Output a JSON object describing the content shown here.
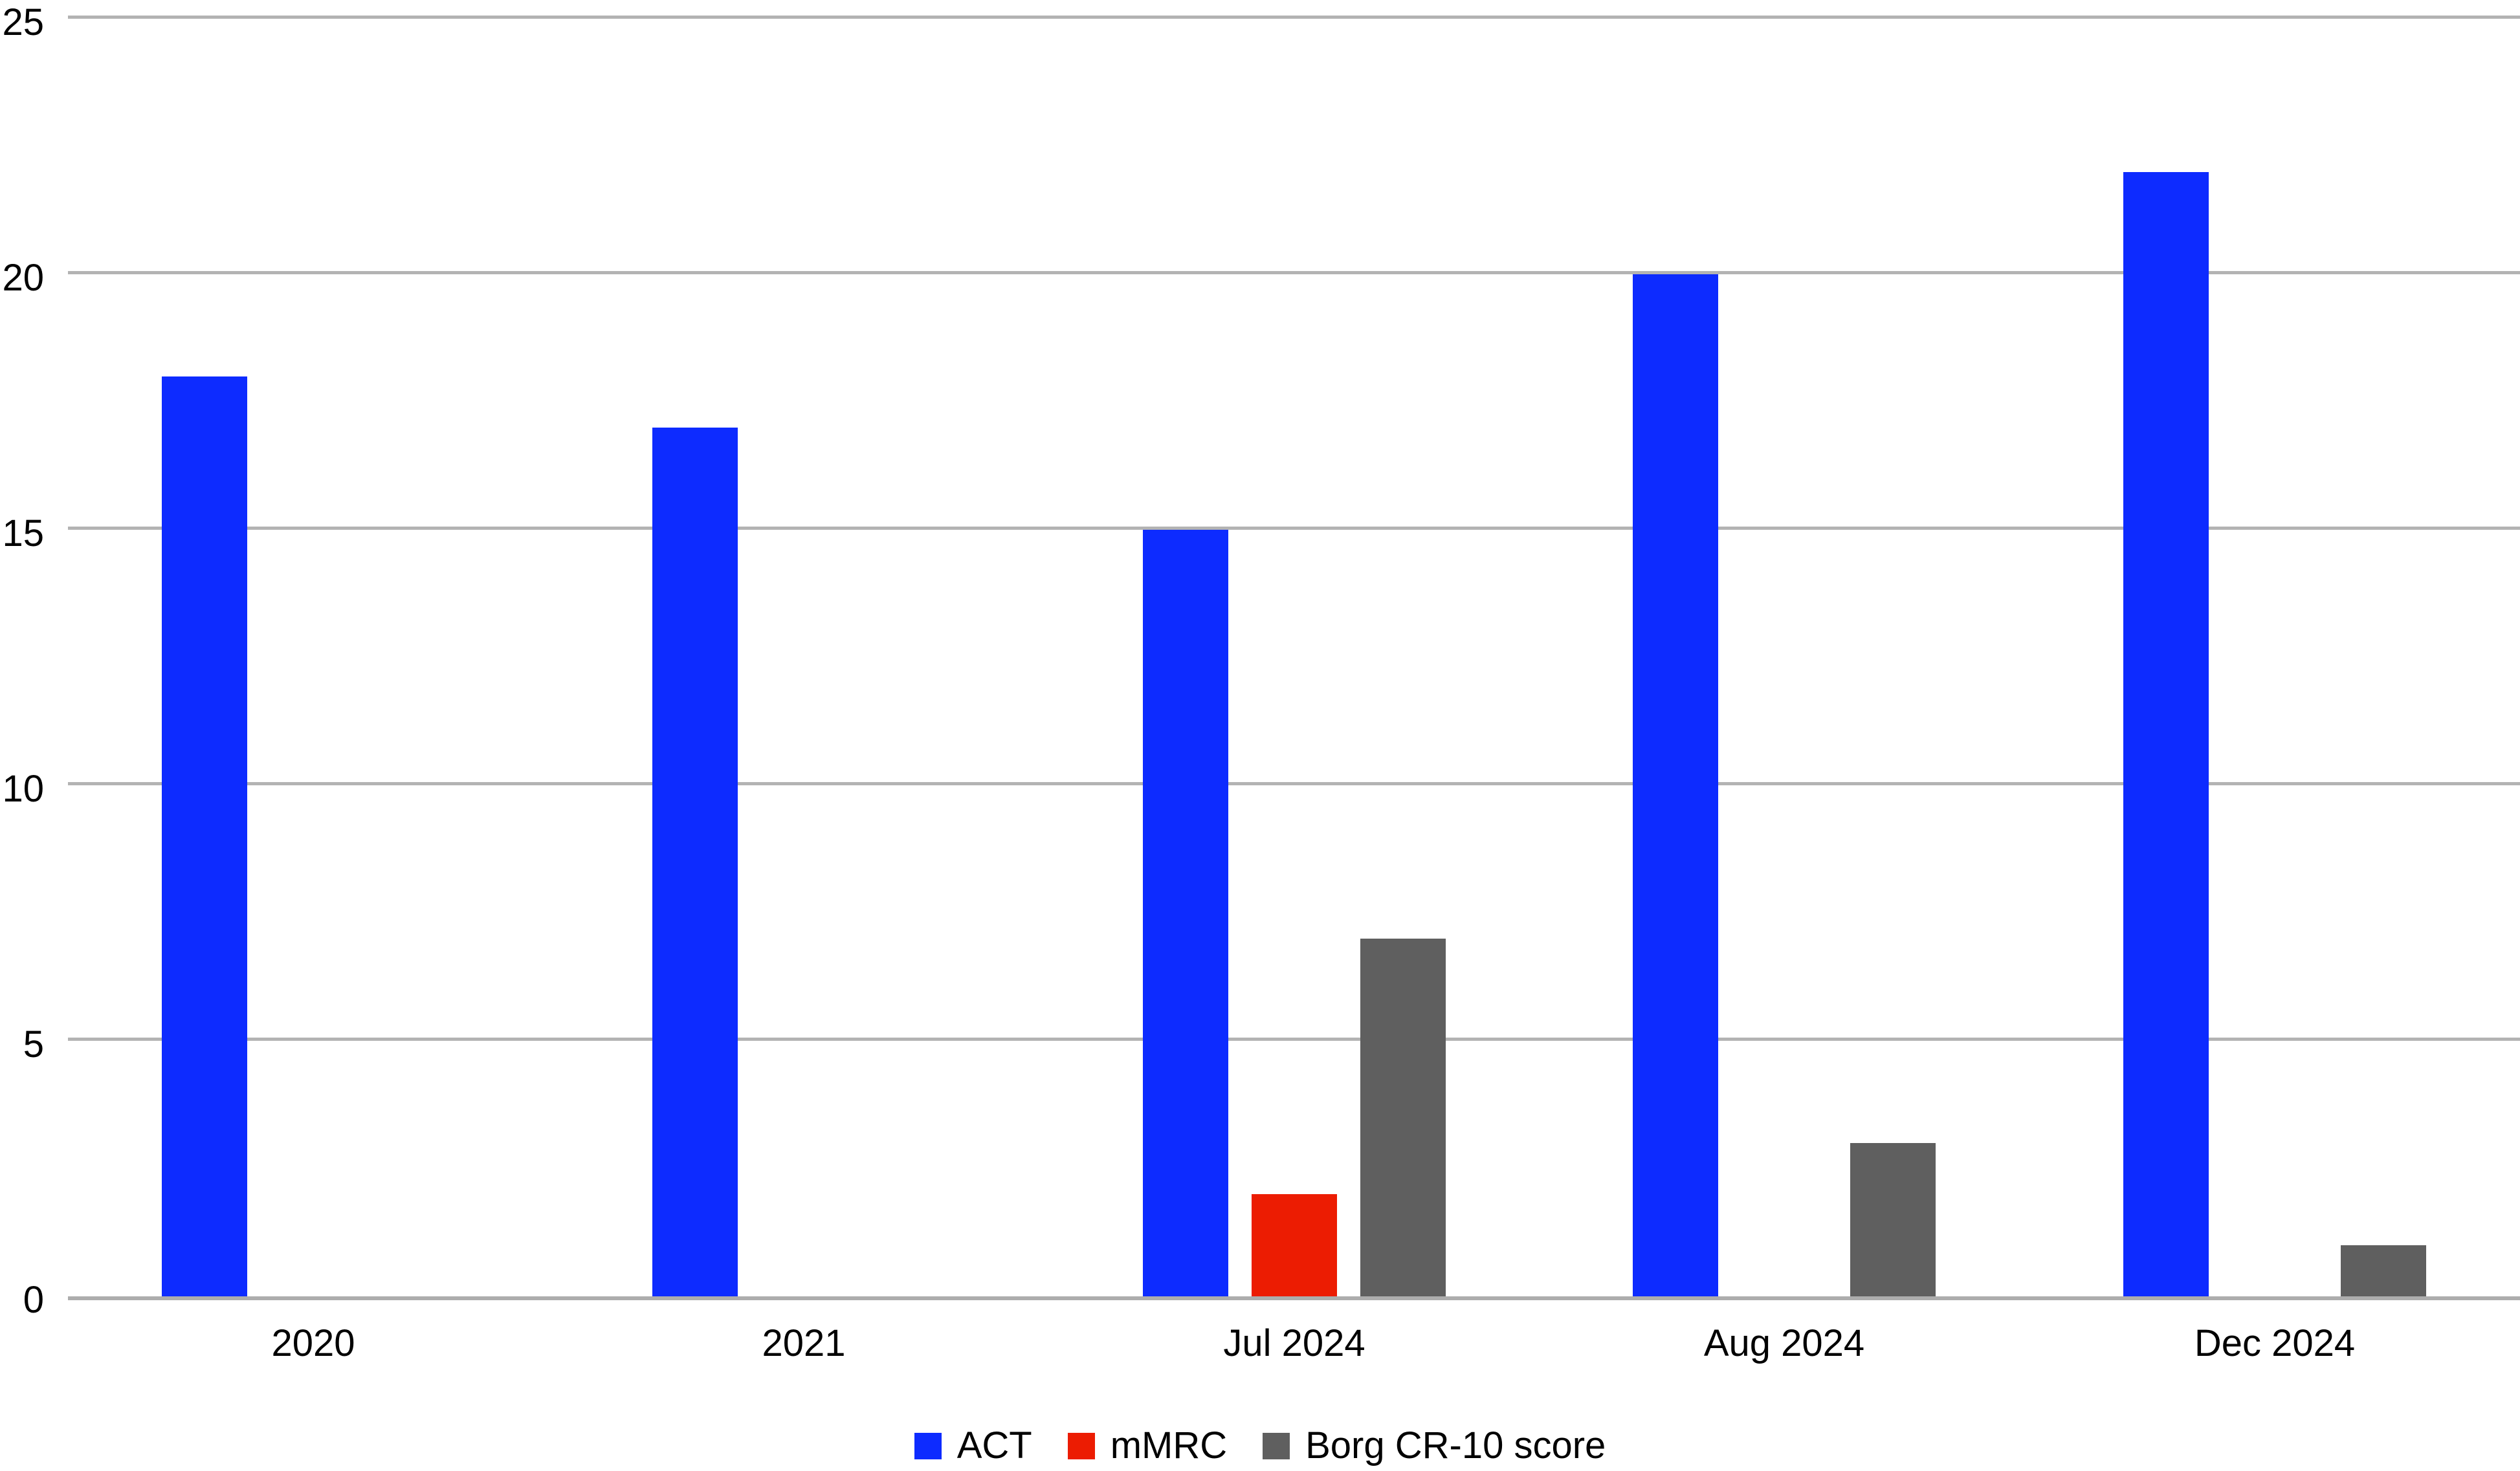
{
  "chart_data": {
    "type": "bar",
    "categories": [
      "2020",
      "2021",
      "Jul 2024",
      "Aug 2024",
      "Dec 2024"
    ],
    "series": [
      {
        "name": "ACT",
        "color": "#0D2BFF",
        "values": [
          18,
          17,
          15,
          20,
          22
        ]
      },
      {
        "name": "mMRC",
        "color": "#EC1C02",
        "values": [
          0,
          0,
          2,
          0,
          0
        ]
      },
      {
        "name": "Borg CR-10 score",
        "color": "#5F5F5F",
        "values": [
          0,
          0,
          7,
          3,
          1
        ]
      }
    ],
    "title": "",
    "xlabel": "",
    "ylabel": "",
    "ylim": [
      0,
      25
    ],
    "yticks": [
      0,
      5,
      10,
      15,
      20,
      25
    ],
    "grid": true,
    "legend_position": "bottom",
    "colors": {
      "background": "#FFFFFF",
      "gridline": "#B3B3B3",
      "axis_line": "#ADADAD",
      "text": "#000000"
    }
  }
}
